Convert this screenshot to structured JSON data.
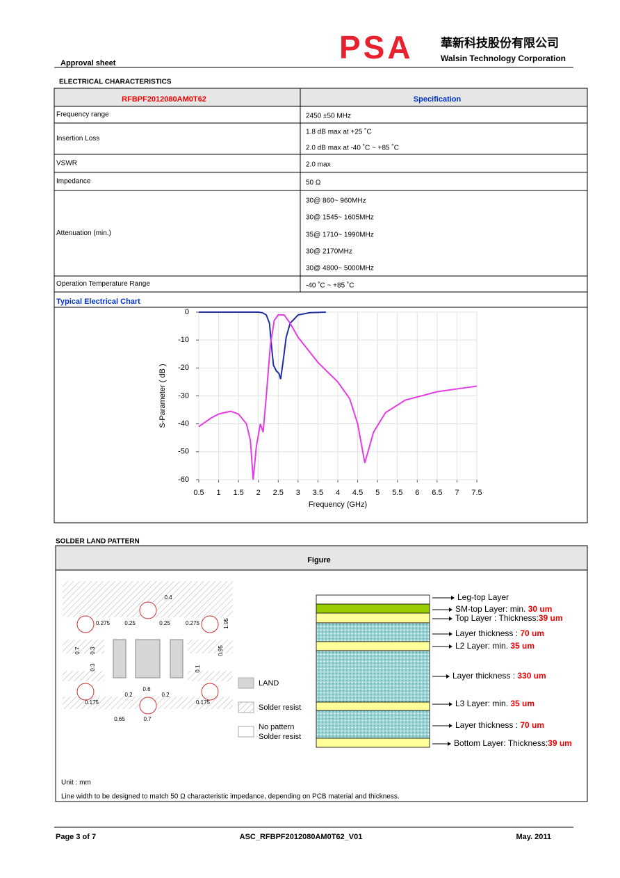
{
  "header": {
    "logo": "PSA",
    "company_cn": "華新科技股份有限公司",
    "company_en": "Walsin Technology Corporation",
    "doc_type": "Approval sheet"
  },
  "section1": "ELECTRICAL CHARACTERISTICS",
  "table": {
    "header": [
      "RFBPF2012080AM0T62",
      "Specification"
    ],
    "rows": [
      {
        "label": "Frequency range",
        "values": [
          "2450 ±50 MHz"
        ]
      },
      {
        "label": "Insertion Loss",
        "values": [
          "1.8 dB max at +25 ˚C",
          "2.0 dB max at -40 ˚C ~ +85 ˚C"
        ]
      },
      {
        "label": "VSWR",
        "values": [
          "2.0 max"
        ]
      },
      {
        "label": "Impedance",
        "values": [
          "50 Ω"
        ]
      },
      {
        "label": "Attenuation (min.)",
        "values": [
          "30@ 860~ 960MHz",
          "30@ 1545~ 1605MHz",
          "35@ 1710~ 1990MHz",
          "30@ 2170MHz",
          "30@ 4800~ 5000MHz"
        ]
      },
      {
        "label": "Operation Temperature Range",
        "values": [
          "-40 ˚C ~ +85 ˚C"
        ]
      }
    ],
    "chart_title": "Typical Electrical Chart"
  },
  "chart": {
    "type": "line",
    "xlabel": "Frequency (GHz)",
    "ylabel": "S-Parameter ( dB )",
    "xlim": [
      0.5,
      7.5
    ],
    "ylim": [
      -60,
      0
    ],
    "xticks": [
      0.5,
      1,
      1.5,
      2,
      2.5,
      3,
      3.5,
      4,
      4.5,
      5,
      5.5,
      6,
      6.5,
      7,
      7.5
    ],
    "yticks": [
      0,
      -10,
      -20,
      -30,
      -40,
      -50,
      -60
    ],
    "grid": true,
    "series": [
      {
        "color": "#1f2fa0",
        "x": [
          0.5,
          1,
          1.5,
          2,
          2.1,
          2.2,
          2.28,
          2.33,
          2.38,
          2.45,
          2.52,
          2.56,
          2.62,
          2.7,
          2.8,
          3,
          3.3,
          3.7
        ],
        "values": [
          0,
          0,
          0,
          0,
          -0.2,
          -1,
          -4,
          -12,
          -19,
          -21,
          -22,
          -24,
          -18,
          -9,
          -4,
          -1,
          -0.2,
          0
        ]
      },
      {
        "color": "#e43ce4",
        "x": [
          0.5,
          0.8,
          1,
          1.3,
          1.5,
          1.7,
          1.8,
          1.87,
          1.95,
          2.05,
          2.12,
          2.2,
          2.3,
          2.4,
          2.5,
          2.65,
          2.8,
          3,
          3.5,
          4,
          4.3,
          4.5,
          4.68,
          4.9,
          5.2,
          5.7,
          6.5,
          7.5
        ],
        "values": [
          -41,
          -38,
          -36.5,
          -35.5,
          -36.5,
          -40,
          -46,
          -60,
          -48,
          -40,
          -43,
          -30,
          -12,
          -3,
          -1,
          -1,
          -4,
          -9,
          -18,
          -25,
          -31,
          -40,
          -54,
          -43,
          -36,
          -31.5,
          -28.5,
          -26.5
        ]
      }
    ]
  },
  "section2": "SOLDER LAND PATTERN",
  "figure": {
    "title": "Figure",
    "dims": [
      "0.4",
      "0.275",
      "0.25",
      "0.25",
      "0.275",
      "1.95",
      "0.7",
      "0.3",
      "0.3",
      "0.95",
      "0.1",
      "0.175",
      "0.2",
      "0.6",
      "0.2",
      "0.175",
      "0.65",
      "0.7"
    ],
    "legend": [
      "LAND",
      "Solder resist",
      [
        "No pattern",
        "Solder resist"
      ]
    ],
    "layers": [
      {
        "text": "Leg-top Layer"
      },
      {
        "text": "SM-top Layer: min. ",
        "value": "30 um"
      },
      {
        "text": "Top Layer : Thickness:",
        "value": "39 um"
      },
      {
        "text": "Layer thickness : ",
        "value": "70 um"
      },
      {
        "text": "L2 Layer: min. ",
        "value": "35 um"
      },
      {
        "text": "Layer thickness : ",
        "value": "330 um"
      },
      {
        "text": "L3 Layer: min. ",
        "value": "35 um"
      },
      {
        "text": "Layer thickness : ",
        "value": "70 um"
      },
      {
        "text": "Bottom Layer: Thickness:",
        "value": "39 um"
      }
    ],
    "unit": "Unit : mm",
    "note": "Line width to be designed to match 50 Ω characteristic impedance, depending on PCB material and thickness."
  },
  "footer": {
    "page": "Page 3 of 7",
    "doc_id": "ASC_RFBPF2012080AM0T62_V01",
    "date": "May. 2011"
  }
}
